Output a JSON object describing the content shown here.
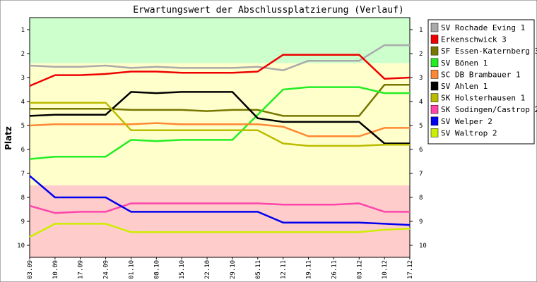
{
  "chart_data": {
    "type": "line",
    "title": "Erwartungswert der Abschlussplatzierung (Verlauf)",
    "xlabel": "",
    "ylabel": "Platz",
    "y_reversed": true,
    "ylim": [
      0.5,
      10.5
    ],
    "yticks": [
      "1",
      "2",
      "3",
      "4",
      "5",
      "6",
      "7",
      "8",
      "9",
      "10"
    ],
    "zones": [
      {
        "from": 0.5,
        "to": 2.4,
        "color": "#ccffcc"
      },
      {
        "from": 2.4,
        "to": 7.5,
        "color": "#ffffcc"
      },
      {
        "from": 7.5,
        "to": 10.5,
        "color": "#ffcccc"
      }
    ],
    "categories": [
      "03.09",
      "10.09",
      "17.09",
      "24.09",
      "01.10",
      "08.10",
      "15.10",
      "22.10",
      "29.10",
      "05.11",
      "12.11",
      "19.11",
      "26.11",
      "03.12",
      "10.12",
      "17.12"
    ],
    "legend_position": "right",
    "series": [
      {
        "name": "SV Rochade Eving 1",
        "color": "#aaaaaa",
        "values": [
          2.5,
          2.55,
          2.55,
          2.5,
          2.6,
          2.55,
          2.6,
          2.6,
          2.6,
          2.55,
          2.7,
          2.3,
          2.3,
          2.3,
          1.65,
          1.65
        ]
      },
      {
        "name": "Erkenschwick 3",
        "color": "#ee0000",
        "values": [
          3.35,
          2.9,
          2.9,
          2.85,
          2.75,
          2.75,
          2.8,
          2.8,
          2.8,
          2.75,
          2.05,
          2.05,
          2.05,
          2.05,
          3.05,
          3.0
        ]
      },
      {
        "name": "SF Essen-Katernberg 3",
        "color": "#777700",
        "values": [
          4.3,
          4.3,
          4.3,
          4.3,
          4.35,
          4.35,
          4.35,
          4.4,
          4.35,
          4.35,
          4.6,
          4.6,
          4.6,
          4.6,
          3.3,
          3.3
        ]
      },
      {
        "name": "SV Bönen 1",
        "color": "#22ee22",
        "values": [
          6.4,
          6.3,
          6.3,
          6.3,
          5.6,
          5.65,
          5.6,
          5.6,
          5.6,
          4.55,
          3.5,
          3.4,
          3.4,
          3.4,
          3.65,
          3.65
        ]
      },
      {
        "name": "SC DB Brambauer 1",
        "color": "#ff8833",
        "values": [
          5.0,
          4.95,
          4.95,
          4.95,
          4.95,
          4.9,
          4.95,
          4.95,
          4.95,
          4.95,
          5.05,
          5.45,
          5.45,
          5.45,
          5.1,
          5.1
        ]
      },
      {
        "name": "SV Ahlen 1",
        "color": "#000000",
        "values": [
          4.6,
          4.55,
          4.55,
          4.55,
          3.6,
          3.65,
          3.6,
          3.6,
          3.6,
          4.7,
          4.85,
          4.85,
          4.85,
          4.85,
          5.75,
          5.75
        ]
      },
      {
        "name": "SK Holsterhausen 1",
        "color": "#bbbb00",
        "values": [
          4.05,
          4.05,
          4.05,
          4.05,
          5.2,
          5.2,
          5.2,
          5.2,
          5.2,
          5.2,
          5.75,
          5.85,
          5.85,
          5.85,
          5.8,
          5.8
        ]
      },
      {
        "name": "SK Sodingen/Castrop 2",
        "color": "#ff44aa",
        "values": [
          8.35,
          8.65,
          8.6,
          8.6,
          8.25,
          8.25,
          8.25,
          8.25,
          8.25,
          8.25,
          8.3,
          8.3,
          8.3,
          8.25,
          8.6,
          8.6
        ]
      },
      {
        "name": "SV Welper 2",
        "color": "#0000ee",
        "values": [
          7.1,
          8.0,
          8.0,
          8.0,
          8.6,
          8.6,
          8.6,
          8.6,
          8.6,
          8.6,
          9.05,
          9.05,
          9.05,
          9.05,
          9.1,
          9.15
        ]
      },
      {
        "name": "SV Waltrop 2",
        "color": "#ccee00",
        "values": [
          9.65,
          9.1,
          9.1,
          9.1,
          9.45,
          9.45,
          9.45,
          9.45,
          9.45,
          9.45,
          9.45,
          9.45,
          9.45,
          9.45,
          9.35,
          9.3
        ]
      }
    ]
  }
}
